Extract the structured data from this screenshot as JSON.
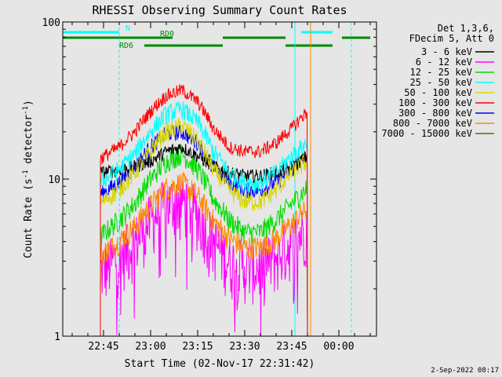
{
  "chart_data": {
    "type": "line",
    "title": "RHESSI Observing Summary Count Rates",
    "xlabel": "Start Time (02-Nov-17 22:31:42)",
    "ylabel_main": "Count Rate (s",
    "ylabel_sup1": "-1",
    "ylabel_mid": " detector",
    "ylabel_sup2": "-1",
    "ylabel_end": ")",
    "yscale": "log",
    "ylim": [
      1,
      100
    ],
    "xlim_minutes": [
      -28,
      72
    ],
    "x_tick_labels": [
      "22:45",
      "23:00",
      "23:15",
      "23:30",
      "23:45",
      "00:00"
    ],
    "x_tick_minutes": [
      -15,
      0,
      15,
      30,
      45,
      60
    ],
    "y_tick_labels": [
      "1",
      "10",
      "100"
    ],
    "y_tick_values": [
      1,
      10,
      100
    ],
    "legend_header": [
      "Det 1,3,6,",
      "FDecim 5, Att 0"
    ],
    "series": [
      {
        "name": "3 - 6 keV",
        "color": "#000000",
        "x": [
          -16,
          -10,
          -5,
          0,
          5,
          10,
          15,
          20,
          25,
          30,
          35,
          40,
          45,
          50
        ],
        "y": [
          11,
          11.5,
          12,
          13,
          15,
          16,
          14,
          12,
          11,
          10.5,
          10.5,
          11,
          12,
          14
        ]
      },
      {
        "name": "6 - 12 keV",
        "color": "#ff00ff",
        "x": [
          -16,
          -10,
          -5,
          0,
          5,
          10,
          15,
          20,
          25,
          30,
          35,
          40,
          45,
          50
        ],
        "y": [
          2.6,
          3.2,
          4,
          5.5,
          7,
          7.5,
          6,
          4,
          3,
          2.8,
          2.8,
          3.2,
          4,
          5
        ]
      },
      {
        "name": "12 - 25 keV",
        "color": "#00dd00",
        "x": [
          -16,
          -10,
          -5,
          0,
          5,
          10,
          15,
          20,
          25,
          30,
          35,
          40,
          45,
          50
        ],
        "y": [
          4.3,
          5.5,
          7,
          10,
          13,
          14.5,
          11.5,
          7.5,
          5.5,
          4.6,
          4.6,
          5.5,
          7,
          8.8
        ]
      },
      {
        "name": "25 - 50 keV",
        "color": "#00ffff",
        "x": [
          -16,
          -10,
          -5,
          0,
          5,
          10,
          15,
          20,
          25,
          30,
          35,
          40,
          45,
          50
        ],
        "y": [
          9.5,
          11.5,
          14.5,
          20,
          26,
          28,
          23,
          15,
          11,
          9.5,
          9.5,
          11,
          14,
          17
        ]
      },
      {
        "name": "50 - 100 keV",
        "color": "#d8d800",
        "x": [
          -16,
          -10,
          -5,
          0,
          5,
          10,
          15,
          20,
          25,
          30,
          35,
          40,
          45,
          50
        ],
        "y": [
          7,
          8.5,
          11,
          15,
          20,
          22,
          17.5,
          11.5,
          8.5,
          7.2,
          7.2,
          8.5,
          11,
          13
        ]
      },
      {
        "name": "100 - 300 keV",
        "color": "#ff0000",
        "x": [
          -16,
          -10,
          -5,
          0,
          5,
          10,
          15,
          20,
          25,
          30,
          35,
          40,
          45,
          50
        ],
        "y": [
          13.5,
          16,
          20,
          27,
          34,
          37,
          31,
          21,
          16,
          15,
          15,
          17,
          21,
          27
        ]
      },
      {
        "name": "300 - 800 keV",
        "color": "#0000ff",
        "x": [
          -16,
          -10,
          -5,
          0,
          5,
          10,
          15,
          20,
          25,
          30,
          35,
          40,
          45,
          50
        ],
        "y": [
          8,
          9.5,
          12,
          16,
          19.5,
          20,
          17,
          12,
          9.5,
          8.5,
          8.5,
          9.5,
          11.5,
          14
        ]
      },
      {
        "name": "800 - 7000 keV",
        "color": "#ff8800",
        "x": [
          -16,
          -10,
          -5,
          0,
          5,
          10,
          15,
          20,
          25,
          30,
          35,
          40,
          45,
          50
        ],
        "y": [
          3.3,
          4,
          5,
          6.8,
          8.8,
          9.5,
          7.8,
          5.4,
          4.2,
          3.7,
          3.7,
          4.2,
          5.2,
          6.5
        ]
      },
      {
        "name": "7000 - 15000 keV",
        "color": "#666600",
        "x": [],
        "y": []
      }
    ],
    "flags": [
      {
        "label": "N",
        "color": "#00ffff",
        "segments": [
          [
            -28,
            -10
          ],
          [
            48,
            58
          ]
        ]
      },
      {
        "label": "RD0",
        "color": "#008800",
        "segments": [
          [
            -28,
            7
          ],
          [
            23,
            43
          ],
          [
            61,
            70
          ]
        ]
      },
      {
        "label": "RD6",
        "color": "#008800",
        "segments": [
          [
            -2,
            23
          ],
          [
            43,
            58
          ]
        ]
      }
    ],
    "vertical_lines": [
      {
        "minute": -28,
        "color": "#00ffff",
        "style": "solid"
      },
      {
        "minute": -10,
        "color": "#00ffff",
        "style": "dashed"
      },
      {
        "minute": 46,
        "color": "#00ffff",
        "style": "solid"
      },
      {
        "minute": 51,
        "color": "#ff8800",
        "style": "solid"
      },
      {
        "minute": 64,
        "color": "#00ffff",
        "style": "dashed"
      }
    ],
    "grid": false,
    "legend_position": "right"
  },
  "footer": {
    "date_stamp": "2-Sep-2022 08:17"
  }
}
